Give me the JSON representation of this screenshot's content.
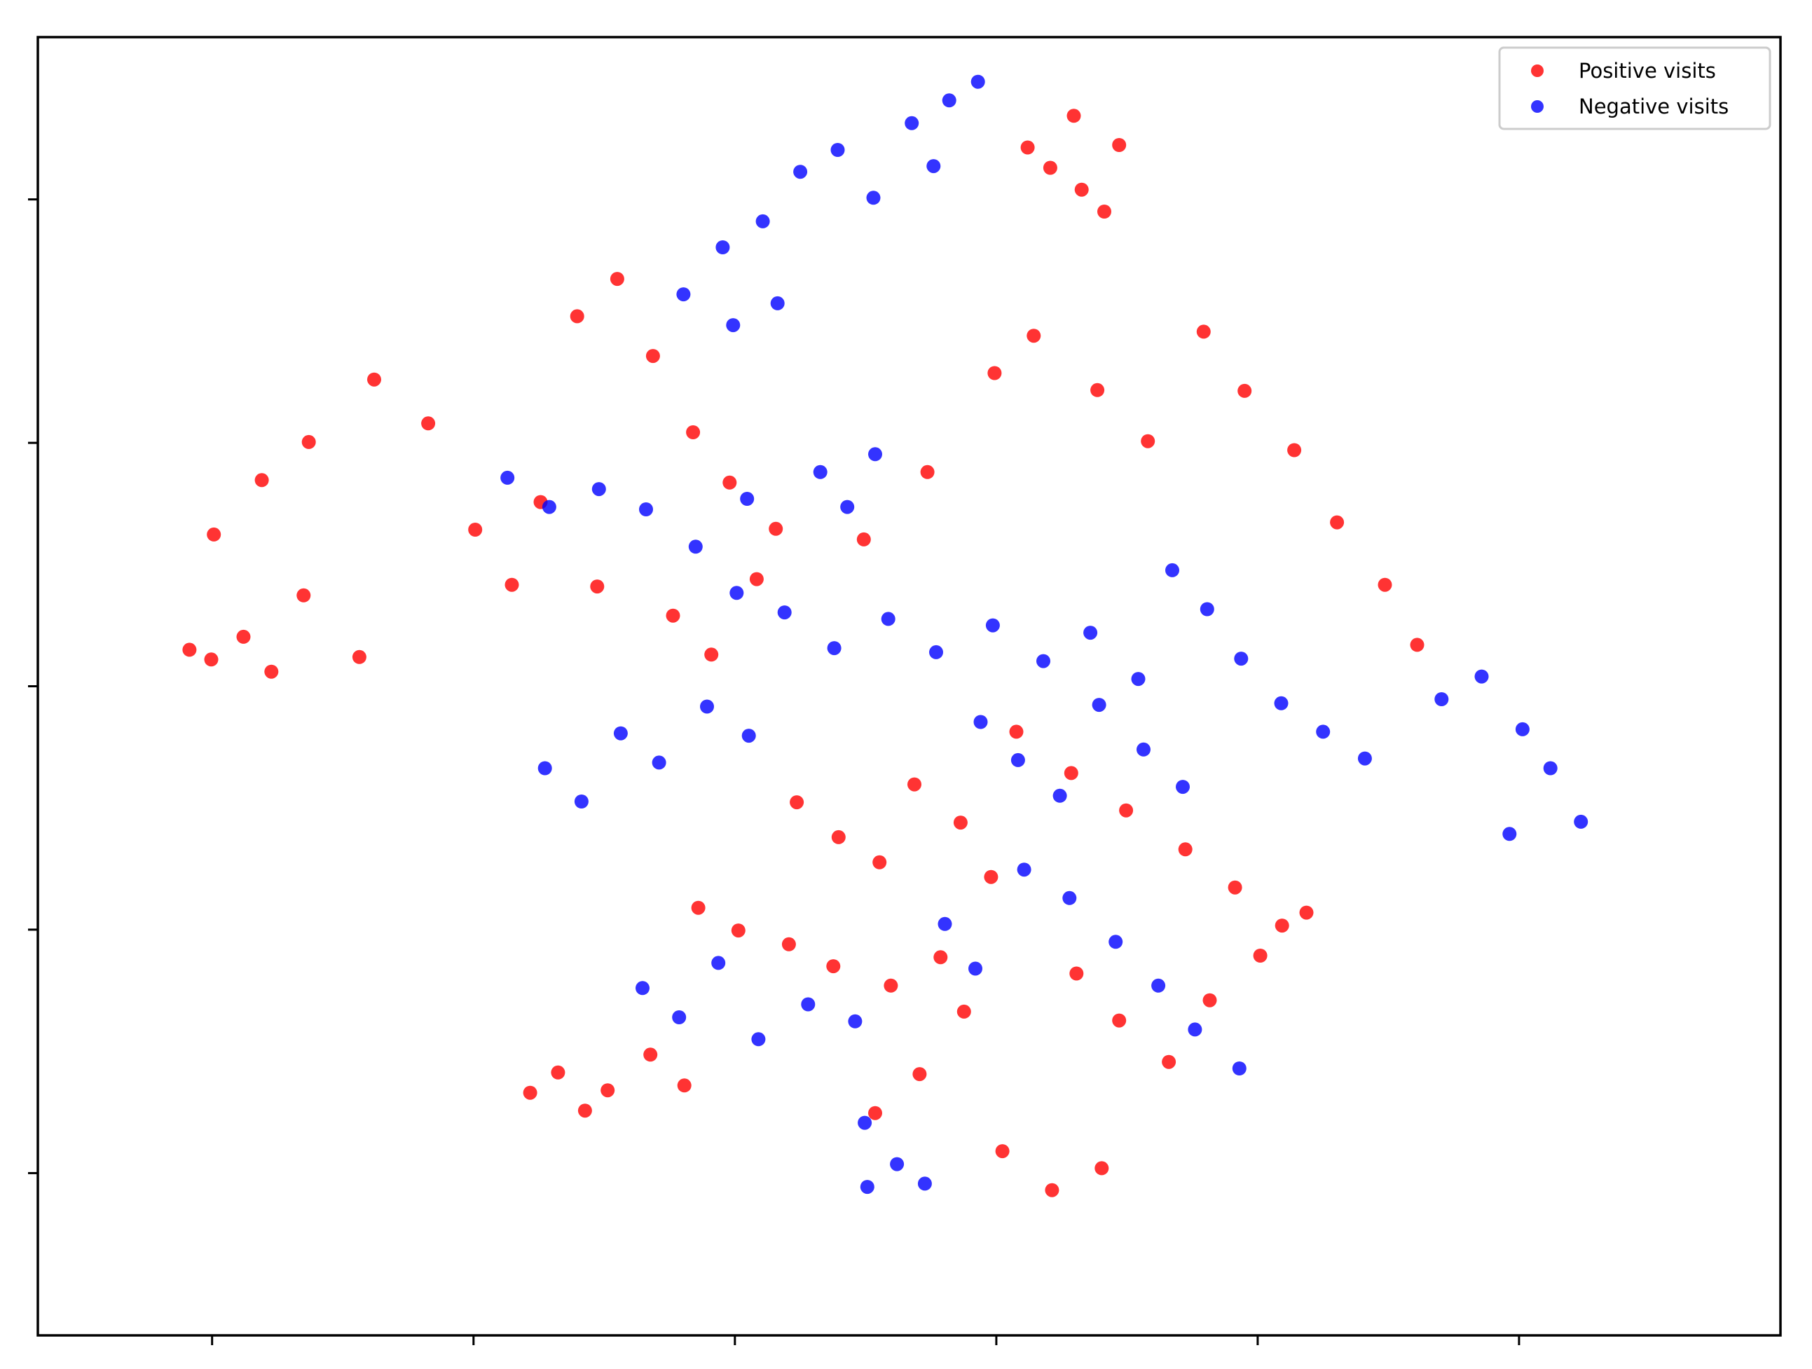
{
  "chart_data": {
    "type": "scatter",
    "title": "",
    "xlabel": "",
    "ylabel": "",
    "x_tick_labels_shown": false,
    "y_tick_labels_shown": false,
    "xlim": [
      -100,
      100
    ],
    "ylim": [
      -80,
      80
    ],
    "grid": false,
    "legend_position": "top-right",
    "series": [
      {
        "name": "Positive visits",
        "color": "#ff0000",
        "values": [
          [
            -82.6,
            4.5
          ],
          [
            -80.1,
            3.3
          ],
          [
            -76.4,
            6.1
          ],
          [
            -73.2,
            1.8
          ],
          [
            -69.5,
            11.2
          ],
          [
            -63.1,
            3.6
          ],
          [
            -79.8,
            18.7
          ],
          [
            -74.3,
            25.4
          ],
          [
            -68.9,
            30.1
          ],
          [
            -61.4,
            37.8
          ],
          [
            -55.2,
            32.4
          ],
          [
            -49.8,
            19.3
          ],
          [
            -45.6,
            12.5
          ],
          [
            -42.3,
            22.7
          ],
          [
            -38.1,
            45.6
          ],
          [
            -33.5,
            50.2
          ],
          [
            -29.4,
            40.7
          ],
          [
            -24.8,
            31.3
          ],
          [
            -20.6,
            25.1
          ],
          [
            -15.3,
            19.4
          ],
          [
            -35.8,
            12.3
          ],
          [
            -27.1,
            8.7
          ],
          [
            -22.7,
            3.9
          ],
          [
            -17.5,
            13.2
          ],
          [
            -5.2,
            18.1
          ],
          [
            2.1,
            26.4
          ],
          [
            9.8,
            38.6
          ],
          [
            14.3,
            43.2
          ],
          [
            21.6,
            36.5
          ],
          [
            27.4,
            30.2
          ],
          [
            33.8,
            43.7
          ],
          [
            38.5,
            36.4
          ],
          [
            44.2,
            29.1
          ],
          [
            49.1,
            20.2
          ],
          [
            54.6,
            12.5
          ],
          [
            58.3,
            5.1
          ],
          [
            13.6,
            66.4
          ],
          [
            16.2,
            63.9
          ],
          [
            19.8,
            61.2
          ],
          [
            22.4,
            58.5
          ],
          [
            18.9,
            70.3
          ],
          [
            24.1,
            66.7
          ],
          [
            12.3,
            -5.6
          ],
          [
            18.6,
            -10.7
          ],
          [
            24.9,
            -15.3
          ],
          [
            31.7,
            -20.1
          ],
          [
            37.4,
            -24.8
          ],
          [
            42.8,
            -29.5
          ],
          [
            19.2,
            -35.4
          ],
          [
            24.1,
            -41.2
          ],
          [
            29.8,
            -46.3
          ],
          [
            34.5,
            -38.7
          ],
          [
            40.3,
            -33.2
          ],
          [
            45.6,
            -27.9
          ],
          [
            6.3,
            -40.1
          ],
          [
            1.2,
            -47.8
          ],
          [
            -3.9,
            -52.6
          ],
          [
            10.7,
            -57.3
          ],
          [
            16.4,
            -62.1
          ],
          [
            22.1,
            -59.4
          ],
          [
            -43.5,
            -50.1
          ],
          [
            -40.3,
            -47.6
          ],
          [
            -37.2,
            -52.3
          ],
          [
            -34.6,
            -49.8
          ],
          [
            -29.7,
            -45.4
          ],
          [
            -25.8,
            -49.2
          ],
          [
            -24.2,
            -27.3
          ],
          [
            -19.6,
            -30.1
          ],
          [
            -13.8,
            -31.8
          ],
          [
            -8.7,
            -34.5
          ],
          [
            -2.1,
            -36.9
          ],
          [
            3.6,
            -33.4
          ],
          [
            -12.9,
            -14.3
          ],
          [
            -8.1,
            -18.6
          ],
          [
            -3.4,
            -21.7
          ],
          [
            0.6,
            -12.1
          ],
          [
            5.9,
            -16.8
          ],
          [
            9.4,
            -23.5
          ]
        ]
      },
      {
        "name": "Negative visits",
        "color": "#0000ff",
        "values": [
          [
            -21.4,
            54.1
          ],
          [
            -16.8,
            57.3
          ],
          [
            -12.5,
            63.4
          ],
          [
            -8.2,
            66.1
          ],
          [
            -4.1,
            60.2
          ],
          [
            0.3,
            69.4
          ],
          [
            4.6,
            72.2
          ],
          [
            7.9,
            74.5
          ],
          [
            2.8,
            64.1
          ],
          [
            -25.9,
            48.3
          ],
          [
            -20.2,
            44.5
          ],
          [
            -15.1,
            47.2
          ],
          [
            -46.1,
            25.7
          ],
          [
            -41.3,
            22.1
          ],
          [
            -35.6,
            24.3
          ],
          [
            -30.2,
            21.8
          ],
          [
            -24.5,
            17.2
          ],
          [
            -18.6,
            23.1
          ],
          [
            -10.2,
            26.4
          ],
          [
            -7.1,
            22.1
          ],
          [
            -3.9,
            28.6
          ],
          [
            -19.8,
            11.5
          ],
          [
            -14.3,
            9.1
          ],
          [
            -8.6,
            4.7
          ],
          [
            -2.4,
            8.3
          ],
          [
            3.1,
            4.2
          ],
          [
            9.6,
            7.5
          ],
          [
            15.4,
            3.1
          ],
          [
            20.8,
            6.6
          ],
          [
            26.3,
            0.9
          ],
          [
            30.2,
            14.3
          ],
          [
            34.2,
            9.5
          ],
          [
            38.1,
            3.4
          ],
          [
            42.7,
            -2.1
          ],
          [
            47.5,
            -5.6
          ],
          [
            52.3,
            -8.9
          ],
          [
            61.1,
            -1.6
          ],
          [
            65.7,
            1.2
          ],
          [
            70.4,
            -5.3
          ],
          [
            73.6,
            -10.1
          ],
          [
            77.1,
            -16.7
          ],
          [
            68.9,
            -18.2
          ],
          [
            -41.8,
            -10.1
          ],
          [
            -37.6,
            -14.2
          ],
          [
            -33.1,
            -5.8
          ],
          [
            -28.7,
            -9.4
          ],
          [
            -23.2,
            -2.5
          ],
          [
            -18.4,
            -6.1
          ],
          [
            -30.6,
            -37.2
          ],
          [
            -26.4,
            -40.8
          ],
          [
            -21.9,
            -34.1
          ],
          [
            -17.3,
            -43.5
          ],
          [
            -11.6,
            -39.2
          ],
          [
            -6.2,
            -41.3
          ],
          [
            -5.1,
            -53.8
          ],
          [
            -1.4,
            -58.9
          ],
          [
            1.8,
            -61.3
          ],
          [
            -4.8,
            -61.7
          ],
          [
            4.1,
            -29.3
          ],
          [
            7.6,
            -34.8
          ],
          [
            13.2,
            -22.6
          ],
          [
            18.4,
            -26.1
          ],
          [
            23.7,
            -31.5
          ],
          [
            28.6,
            -36.9
          ],
          [
            32.8,
            -42.3
          ],
          [
            37.9,
            -47.1
          ],
          [
            8.2,
            -4.4
          ],
          [
            12.5,
            -9.1
          ],
          [
            17.3,
            -13.5
          ],
          [
            21.8,
            -2.3
          ],
          [
            26.9,
            -7.8
          ],
          [
            31.4,
            -12.4
          ]
        ]
      }
    ]
  }
}
